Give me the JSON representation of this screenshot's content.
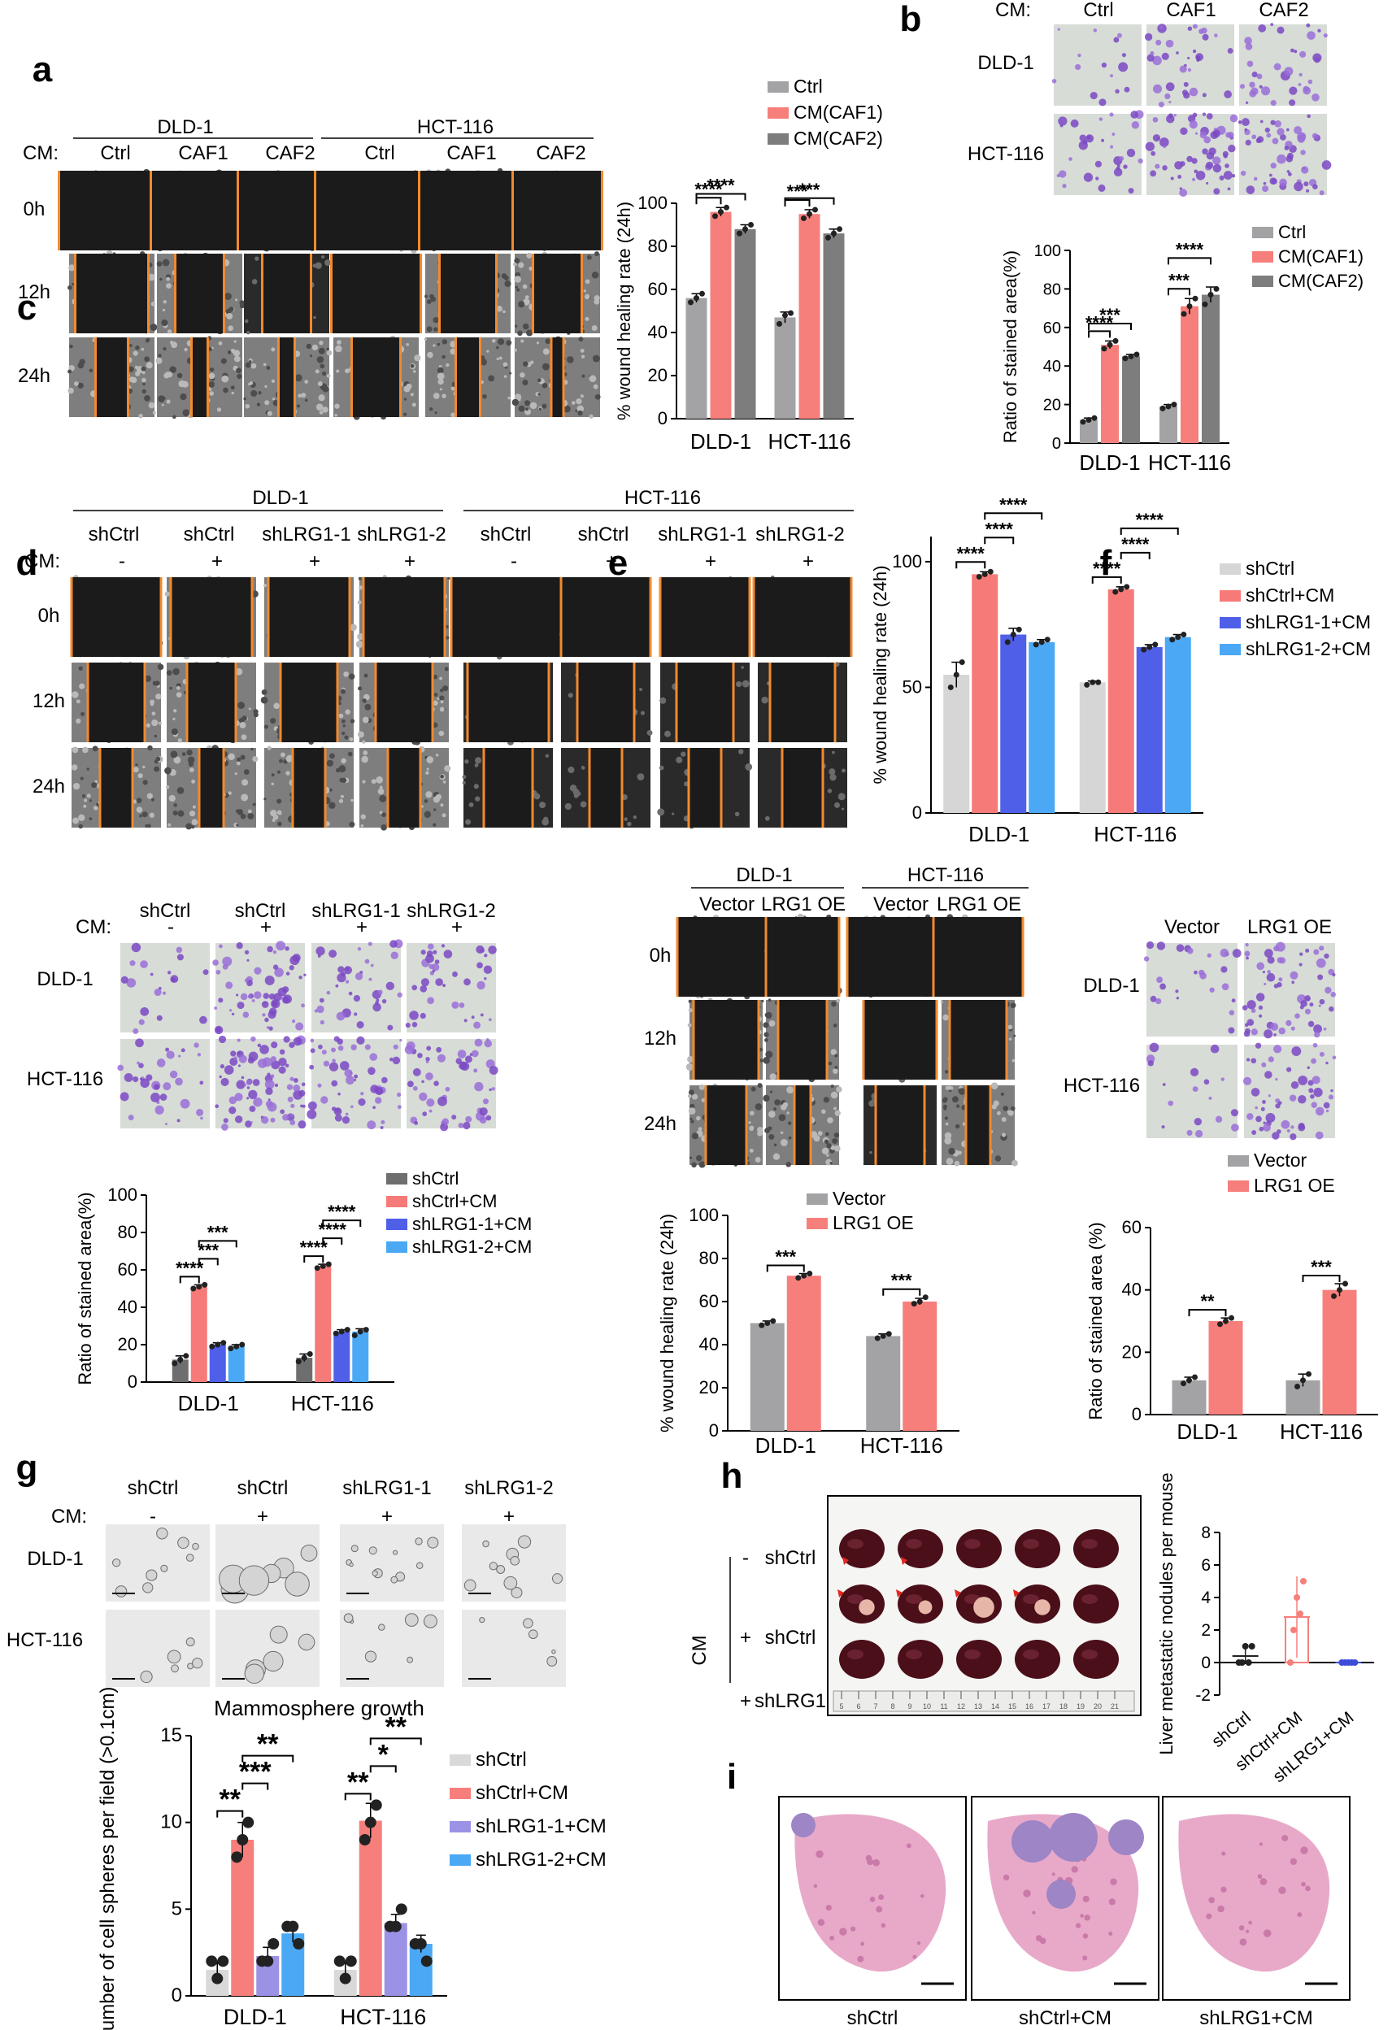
{
  "panels": {
    "a": {
      "label": "a",
      "cm": "CM:",
      "groups": [
        "DLD-1",
        "HCT-116"
      ],
      "columns": [
        "Ctrl",
        "CAF1",
        "CAF2",
        "Ctrl",
        "CAF1",
        "CAF2"
      ],
      "rows": [
        "0h",
        "12h",
        "24h"
      ]
    },
    "b": {
      "label": "b",
      "cm": "CM:",
      "columns": [
        "Ctrl",
        "CAF1",
        "CAF2"
      ],
      "rows": [
        "DLD-1",
        "HCT-116"
      ]
    },
    "c": {
      "label": "c",
      "cm": "CM:",
      "groups": [
        "DLD-1",
        "HCT-116"
      ],
      "columns": [
        "shCtrl",
        "shCtrl",
        "shLRG1-1",
        "shLRG1-2",
        "shCtrl",
        "shCtrl",
        "shLRG1-1",
        "shLRG1-2"
      ],
      "cm_signs": [
        "-",
        "+",
        "+",
        "+",
        "-",
        "+",
        "+",
        "+"
      ],
      "rows": [
        "0h",
        "12h",
        "24h"
      ]
    },
    "d": {
      "label": "d",
      "cm": "CM:",
      "columns": [
        "shCtrl",
        "shCtrl",
        "shLRG1-1",
        "shLRG1-2"
      ],
      "cm_signs": [
        "-",
        "+",
        "+",
        "+"
      ],
      "rows": [
        "DLD-1",
        "HCT-116"
      ]
    },
    "e": {
      "label": "e",
      "groups": [
        "DLD-1",
        "HCT-116"
      ],
      "columns": [
        "Vector",
        "LRG1 OE",
        "Vector",
        "LRG1 OE"
      ],
      "rows": [
        "0h",
        "12h",
        "24h"
      ]
    },
    "f": {
      "label": "f",
      "columns": [
        "Vector",
        "LRG1 OE"
      ],
      "rows": [
        "DLD-1",
        "HCT-116"
      ]
    },
    "g": {
      "label": "g",
      "cm": "CM:",
      "columns": [
        "shCtrl",
        "shCtrl",
        "shLRG1-1",
        "shLRG1-2"
      ],
      "cm_signs": [
        "-",
        "+",
        "+",
        "+"
      ],
      "rows": [
        "DLD-1",
        "HCT-116"
      ]
    },
    "h": {
      "label": "h",
      "cm": "CM",
      "row_signs": [
        "-",
        "+",
        "+"
      ],
      "rows": [
        "shCtrl",
        "shCtrl",
        "shLRG1"
      ],
      "ruler_numbers": [
        "5",
        "6",
        "7",
        "8",
        "9",
        "10",
        "11",
        "12",
        "13",
        "14",
        "15",
        "16",
        "17",
        "18",
        "19",
        "20",
        "21"
      ]
    },
    "i": {
      "label": "i",
      "captions": [
        "shCtrl",
        "shCtrl+CM",
        "shLRG1+CM"
      ]
    }
  },
  "chart_data": [
    {
      "id": "a",
      "type": "bar",
      "categories": [
        "DLD-1",
        "HCT-116"
      ],
      "series": [
        {
          "name": "Ctrl",
          "color": "#a3a3a6",
          "values": [
            56,
            47
          ],
          "points": [
            [
              54,
              56,
              58
            ],
            [
              44,
              48,
              49
            ]
          ]
        },
        {
          "name": "CM(CAF1)",
          "color": "#f67f7c",
          "values": [
            96,
            95
          ],
          "points": [
            [
              94,
              96,
              98
            ],
            [
              93,
              95,
              97
            ]
          ]
        },
        {
          "name": "CM(CAF2)",
          "color": "#7d7d7d",
          "values": [
            88,
            86
          ],
          "points": [
            [
              86,
              88,
              90
            ],
            [
              84,
              86,
              88
            ]
          ]
        }
      ],
      "ylabel": "% wound healing rate (24h)",
      "ylim": [
        0,
        100
      ],
      "yticks": [
        "0",
        "20",
        "40",
        "60",
        "80",
        "100"
      ],
      "sig": [
        {
          "g": 0,
          "from": 0,
          "to": 1,
          "text": "****"
        },
        {
          "g": 0,
          "from": 0,
          "to": 2,
          "text": "****"
        },
        {
          "g": 1,
          "from": 0,
          "to": 1,
          "text": "***"
        },
        {
          "g": 1,
          "from": 0,
          "to": 2,
          "text": "***"
        }
      ],
      "legend": "top-left"
    },
    {
      "id": "b",
      "type": "bar",
      "categories": [
        "DLD-1",
        "HCT-116"
      ],
      "series": [
        {
          "name": "Ctrl",
          "color": "#a3a3a6",
          "values": [
            12,
            19
          ],
          "points": [
            [
              11,
              12,
              13
            ],
            [
              18,
              19,
              20
            ]
          ]
        },
        {
          "name": "CM(CAF1)",
          "color": "#f67f7c",
          "values": [
            51,
            71
          ],
          "points": [
            [
              49,
              51,
              53
            ],
            [
              67,
              71,
              75
            ]
          ]
        },
        {
          "name": "CM(CAF2)",
          "color": "#7d7d7d",
          "values": [
            45,
            77
          ],
          "points": [
            [
              44,
              45,
              46
            ],
            [
              72,
              77,
              80
            ]
          ]
        }
      ],
      "ylabel": "Ratio of stained area(%)",
      "ylim": [
        0,
        100
      ],
      "yticks": [
        "0",
        "20",
        "40",
        "60",
        "80",
        "100"
      ],
      "sig": [
        {
          "g": 0,
          "from": 0,
          "to": 1,
          "text": "****"
        },
        {
          "g": 0,
          "from": 0,
          "to": 2,
          "text": "***"
        },
        {
          "g": 1,
          "from": 0,
          "to": 1,
          "text": "***"
        },
        {
          "g": 1,
          "from": 0,
          "to": 2,
          "text": "****"
        }
      ],
      "legend": "top-right"
    },
    {
      "id": "c",
      "type": "bar",
      "categories": [
        "DLD-1",
        "HCT-116"
      ],
      "series": [
        {
          "name": "shCtrl",
          "color": "#d6d6d6",
          "values": [
            55,
            52
          ],
          "points": [
            [
              50,
              55,
              60
            ],
            [
              51,
              52,
              52
            ]
          ]
        },
        {
          "name": "shCtrl+CM",
          "color": "#f67a78",
          "values": [
            95,
            89
          ],
          "points": [
            [
              94,
              95,
              96
            ],
            [
              88,
              89,
              90
            ]
          ]
        },
        {
          "name": "shLRG1-1+CM",
          "color": "#4f5fe8",
          "values": [
            71,
            66
          ],
          "points": [
            [
              68,
              71,
              73
            ],
            [
              65,
              66,
              67
            ]
          ]
        },
        {
          "name": "shLRG1-2+CM",
          "color": "#4aa8f5",
          "values": [
            68,
            70
          ],
          "points": [
            [
              67,
              68,
              69
            ],
            [
              69,
              70,
              71
            ]
          ]
        }
      ],
      "ylabel": "% wound healing rate (24h)",
      "ylim": [
        0,
        110
      ],
      "yticks": [
        "0",
        "50",
        "100"
      ],
      "ytickvals": [
        0,
        50,
        100
      ],
      "sig": [
        {
          "g": 0,
          "from": 0,
          "to": 1,
          "text": "****"
        },
        {
          "g": 0,
          "from": 1,
          "to": 2,
          "text": "****"
        },
        {
          "g": 0,
          "from": 1,
          "to": 3,
          "text": "****"
        },
        {
          "g": 1,
          "from": 0,
          "to": 1,
          "text": "****"
        },
        {
          "g": 1,
          "from": 1,
          "to": 2,
          "text": "****"
        },
        {
          "g": 1,
          "from": 1,
          "to": 3,
          "text": "****"
        }
      ],
      "legend": "top-right"
    },
    {
      "id": "d",
      "type": "bar",
      "categories": [
        "DLD-1",
        "HCT-116"
      ],
      "series": [
        {
          "name": "shCtrl",
          "color": "#6e6e6e",
          "values": [
            12,
            13
          ],
          "points": [
            [
              10,
              12,
              14
            ],
            [
              11,
              13,
              15
            ]
          ]
        },
        {
          "name": "shCtrl+CM",
          "color": "#f67a78",
          "values": [
            51,
            62
          ],
          "points": [
            [
              50,
              51,
              52
            ],
            [
              61,
              62,
              63
            ]
          ]
        },
        {
          "name": "shLRG1-1+CM",
          "color": "#4f5fe8",
          "values": [
            20,
            27
          ],
          "points": [
            [
              19,
              20,
              21
            ],
            [
              26,
              27,
              28
            ]
          ]
        },
        {
          "name": "shLRG1-2+CM",
          "color": "#4aa8f5",
          "values": [
            19,
            27
          ],
          "points": [
            [
              18,
              19,
              20
            ],
            [
              25,
              27,
              28
            ]
          ]
        }
      ],
      "ylabel": "Ratio of stained area(%)",
      "ylim": [
        0,
        100
      ],
      "yticks": [
        "0",
        "20",
        "40",
        "60",
        "80",
        "100"
      ],
      "sig": [
        {
          "g": 0,
          "from": 0,
          "to": 1,
          "text": "****"
        },
        {
          "g": 0,
          "from": 1,
          "to": 2,
          "text": "***"
        },
        {
          "g": 0,
          "from": 1,
          "to": 3,
          "text": "***"
        },
        {
          "g": 1,
          "from": 0,
          "to": 1,
          "text": "****"
        },
        {
          "g": 1,
          "from": 1,
          "to": 2,
          "text": "****"
        },
        {
          "g": 1,
          "from": 1,
          "to": 3,
          "text": "****"
        }
      ],
      "legend": "top-right"
    },
    {
      "id": "e",
      "type": "bar",
      "categories": [
        "DLD-1",
        "HCT-116"
      ],
      "series": [
        {
          "name": "Vector",
          "color": "#a3a3a6",
          "values": [
            50,
            44
          ],
          "points": [
            [
              49,
              50,
              51
            ],
            [
              43,
              44,
              45
            ]
          ]
        },
        {
          "name": "LRG1 OE",
          "color": "#f67f7c",
          "values": [
            72,
            60
          ],
          "points": [
            [
              71,
              72,
              73
            ],
            [
              59,
              60,
              62
            ]
          ]
        }
      ],
      "ylabel": "% wound healing rate (24h)",
      "ylim": [
        0,
        100
      ],
      "yticks": [
        "0",
        "20",
        "40",
        "60",
        "80",
        "100"
      ],
      "sig": [
        {
          "g": 0,
          "from": 0,
          "to": 1,
          "text": "***"
        },
        {
          "g": 1,
          "from": 0,
          "to": 1,
          "text": "***"
        }
      ],
      "legend": "top"
    },
    {
      "id": "f",
      "type": "bar",
      "categories": [
        "DLD-1",
        "HCT-116"
      ],
      "series": [
        {
          "name": "Vector",
          "color": "#a3a3a6",
          "values": [
            11,
            11
          ],
          "points": [
            [
              10,
              11,
              12
            ],
            [
              9,
              11,
              13
            ]
          ]
        },
        {
          "name": "LRG1 OE",
          "color": "#f67f7c",
          "values": [
            30,
            40
          ],
          "points": [
            [
              29,
              30,
              31
            ],
            [
              38,
              40,
              42
            ]
          ]
        }
      ],
      "ylabel": "Ratio of stained area (%)",
      "ylim": [
        0,
        60
      ],
      "yticks": [
        "0",
        "20",
        "40",
        "60"
      ],
      "ytickvals": [
        0,
        20,
        40,
        60
      ],
      "sig": [
        {
          "g": 0,
          "from": 0,
          "to": 1,
          "text": "**"
        },
        {
          "g": 1,
          "from": 0,
          "to": 1,
          "text": "***"
        }
      ],
      "legend": "top"
    },
    {
      "id": "g",
      "type": "bar",
      "title": "Mammosphere growth",
      "categories": [
        "DLD-1",
        "HCT-116"
      ],
      "series": [
        {
          "name": "shCtrl",
          "color": "#d9d9d9",
          "values": [
            1.5,
            1.5
          ],
          "points": [
            [
              2,
              1,
              2
            ],
            [
              2,
              1,
              2
            ]
          ]
        },
        {
          "name": "shCtrl+CM",
          "color": "#f67f7c",
          "values": [
            9.0,
            10.1
          ],
          "points": [
            [
              8,
              9,
              10
            ],
            [
              9,
              10,
              11
            ]
          ]
        },
        {
          "name": "shLRG1-1+CM",
          "color": "#9b92e6",
          "values": [
            2.3,
            4.2
          ],
          "points": [
            [
              2,
              2,
              3
            ],
            [
              4,
              4,
              5
            ]
          ]
        },
        {
          "name": "shLRG1-2+CM",
          "color": "#4aa8f5",
          "values": [
            3.6,
            3.0
          ],
          "points": [
            [
              4,
              4,
              3
            ],
            [
              3,
              3,
              2
            ]
          ]
        }
      ],
      "ylabel": "Number of cell spheres per field (>0.1cm)",
      "ylim": [
        0,
        15
      ],
      "yticks": [
        "0",
        "5",
        "10",
        "15"
      ],
      "ytickvals": [
        0,
        5,
        10,
        15
      ],
      "sig": [
        {
          "g": 0,
          "from": 0,
          "to": 1,
          "text": "**"
        },
        {
          "g": 0,
          "from": 1,
          "to": 2,
          "text": "***"
        },
        {
          "g": 0,
          "from": 1,
          "to": 3,
          "text": "**"
        },
        {
          "g": 1,
          "from": 0,
          "to": 1,
          "text": "**"
        },
        {
          "g": 1,
          "from": 1,
          "to": 2,
          "text": "*"
        },
        {
          "g": 1,
          "from": 1,
          "to": 3,
          "text": "**"
        }
      ],
      "legend": "right"
    },
    {
      "id": "h",
      "type": "scatter",
      "categories": [
        "shCtrl",
        "shCtrl+CM",
        "shLRG1+CM"
      ],
      "series": [
        {
          "name": "shCtrl",
          "color": "#222222",
          "values": [
            0.4
          ],
          "points": [
            0,
            0,
            1,
            0,
            1
          ]
        },
        {
          "name": "shCtrl+CM",
          "color": "#f67f7c",
          "values": [
            2.8
          ],
          "points": [
            0,
            2,
            4,
            3,
            5
          ]
        },
        {
          "name": "shLRG1+CM",
          "color": "#3d4dd8",
          "values": [
            0
          ],
          "points": [
            0,
            0,
            0,
            0,
            0
          ]
        }
      ],
      "ylabel": "Liver metastatic nodules per mouse",
      "ylim": [
        -2,
        8
      ],
      "yticks": [
        "-2",
        "0",
        "2",
        "4",
        "6",
        "8"
      ],
      "ytickvals": [
        -2,
        0,
        2,
        4,
        6,
        8
      ]
    }
  ]
}
